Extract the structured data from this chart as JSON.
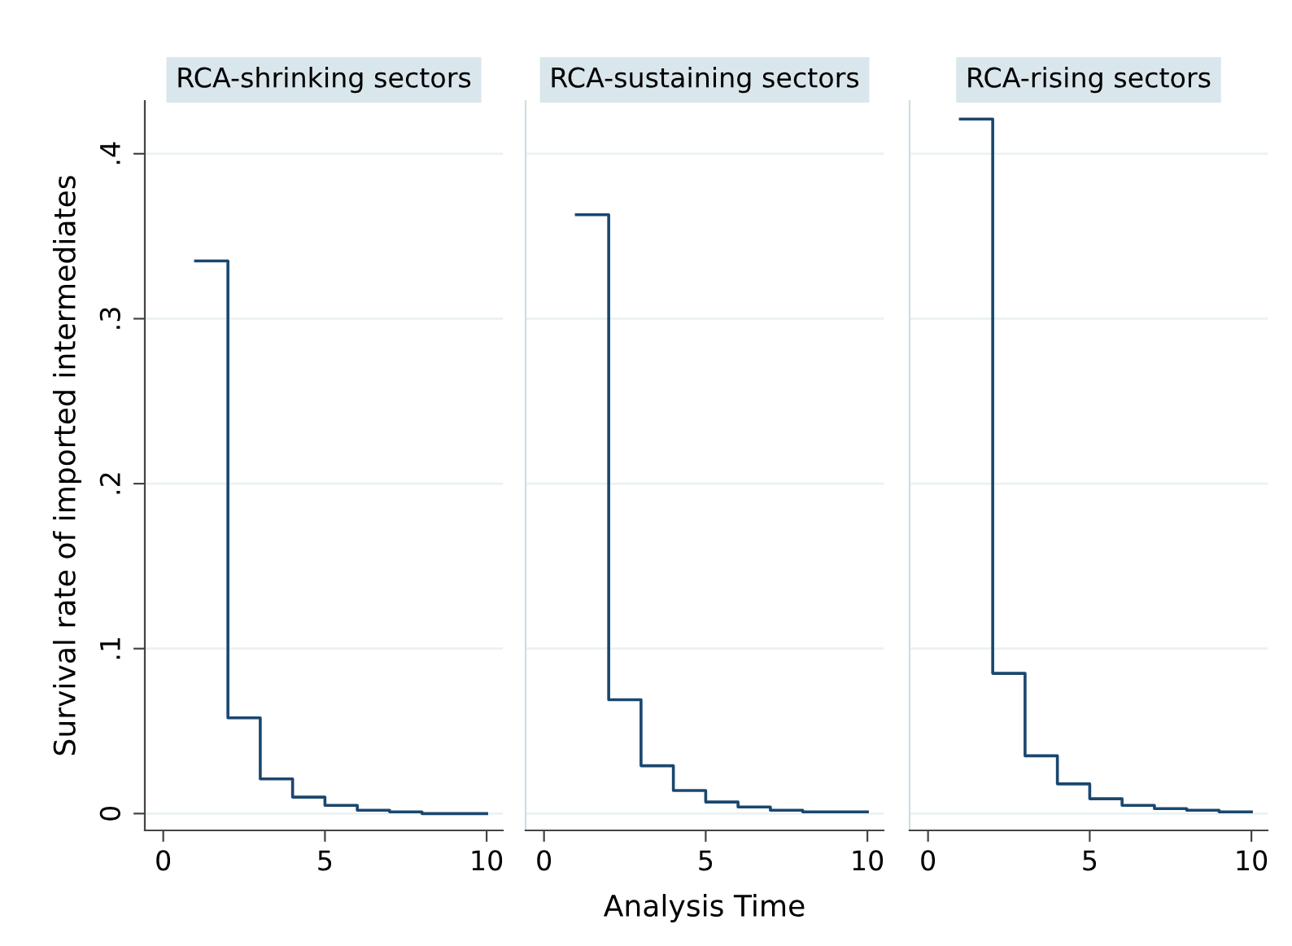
{
  "chart_data": [
    {
      "type": "step",
      "title": "RCA-shrinking sectors",
      "ylabel": "Survival rate of imported intermediates",
      "x": [
        1,
        2,
        3,
        4,
        5,
        6,
        7,
        8,
        9,
        10
      ],
      "series": [
        {
          "color": "#1a476f",
          "values": [
            0.335,
            0.058,
            0.021,
            0.01,
            0.005,
            0.002,
            0.001,
            0,
            0,
            0
          ]
        }
      ],
      "xlim": [
        -0.57,
        10.5
      ],
      "xticks": [
        0,
        5,
        10
      ],
      "ylim": [
        -0.0102,
        0.432
      ],
      "yticks": [
        {
          "value": 0,
          "label": "0"
        },
        {
          "value": 0.1,
          "label": ".1"
        },
        {
          "value": 0.2,
          "label": ".2"
        },
        {
          "value": 0.3,
          "label": ".3"
        },
        {
          "value": 0.4,
          "label": ".4"
        }
      ],
      "grid": "y"
    },
    {
      "type": "step",
      "title": "RCA-sustaining sectors",
      "xlabel": "Analysis Time",
      "x": [
        1,
        2,
        3,
        4,
        5,
        6,
        7,
        8,
        9,
        10
      ],
      "series": [
        {
          "color": "#1a476f",
          "values": [
            0.363,
            0.069,
            0.029,
            0.014,
            0.007,
            0.004,
            0.002,
            0.001,
            0.001,
            0.001
          ]
        }
      ],
      "xlim": [
        -0.57,
        10.5
      ],
      "xticks": [
        0,
        5,
        10
      ],
      "ylim": [
        -0.0102,
        0.432
      ],
      "yticks": [
        {
          "value": 0,
          "label": null
        },
        {
          "value": 0.1,
          "label": null
        },
        {
          "value": 0.2,
          "label": null
        },
        {
          "value": 0.3,
          "label": null
        },
        {
          "value": 0.4,
          "label": null
        }
      ],
      "grid": "y",
      "tick_labels": "x"
    },
    {
      "type": "step",
      "title": "RCA-rising sectors",
      "x": [
        1,
        2,
        3,
        4,
        5,
        6,
        7,
        8,
        9,
        10
      ],
      "series": [
        {
          "color": "#1a476f",
          "values": [
            0.421,
            0.085,
            0.035,
            0.018,
            0.009,
            0.005,
            0.003,
            0.002,
            0.001,
            0.001
          ]
        }
      ],
      "xlim": [
        -0.57,
        10.5
      ],
      "xticks": [
        0,
        5,
        10
      ],
      "ylim": [
        -0.0102,
        0.432
      ],
      "yticks": [
        {
          "value": 0,
          "label": null
        },
        {
          "value": 0.1,
          "label": null
        },
        {
          "value": 0.2,
          "label": null
        },
        {
          "value": 0.3,
          "label": null
        },
        {
          "value": 0.4,
          "label": null
        }
      ],
      "grid": "y",
      "tick_labels": "x"
    }
  ]
}
